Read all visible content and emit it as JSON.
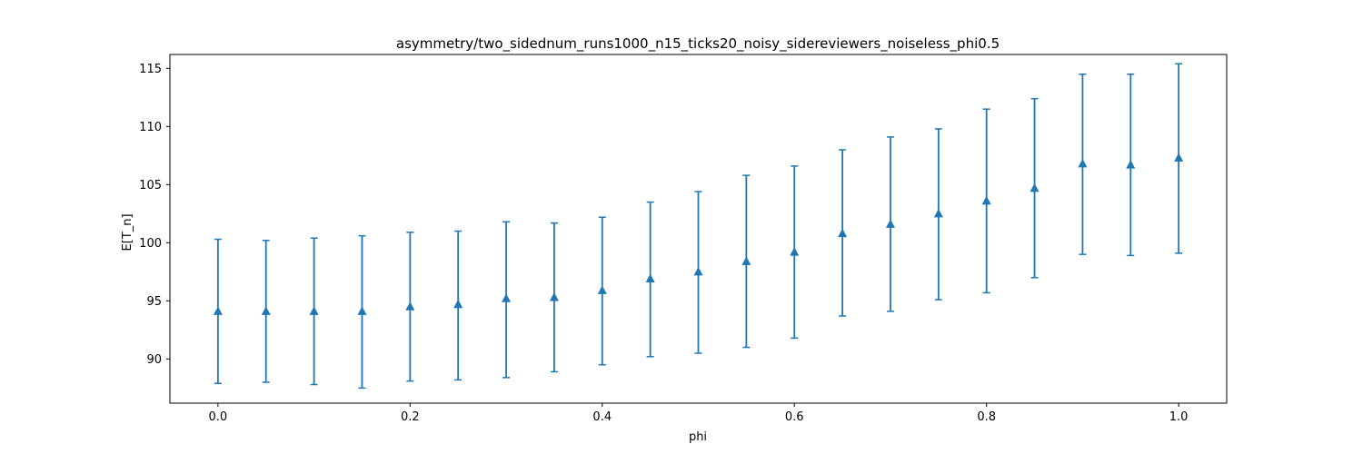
{
  "chart_data": {
    "type": "scatter",
    "title": "asymmetry/two_sidednum_runs1000_n15_ticks20_noisy_sidereviewers_noiseless_phi0.5",
    "xlabel": "phi",
    "ylabel": "E[T_n]",
    "xlim": [
      -0.05,
      1.05
    ],
    "ylim": [
      86.2,
      116.2
    ],
    "xticks": [
      0.0,
      0.2,
      0.4,
      0.6,
      0.8,
      1.0
    ],
    "xtick_labels": [
      "0.0",
      "0.2",
      "0.4",
      "0.6",
      "0.8",
      "1.0"
    ],
    "yticks": [
      90,
      95,
      100,
      105,
      110,
      115
    ],
    "ytick_labels": [
      "90",
      "95",
      "100",
      "105",
      "110",
      "115"
    ],
    "grid": false,
    "marker": "triangle-up",
    "error_bars": true,
    "color": "#1f77b4",
    "series": [
      {
        "x": [
          0.0,
          0.05,
          0.1,
          0.15,
          0.2,
          0.25,
          0.3,
          0.35,
          0.4,
          0.45,
          0.5,
          0.55,
          0.6,
          0.65,
          0.7,
          0.75,
          0.8,
          0.85,
          0.9,
          0.95,
          1.0
        ],
        "y": [
          94.1,
          94.1,
          94.1,
          94.1,
          94.5,
          94.7,
          95.2,
          95.3,
          95.9,
          96.9,
          97.5,
          98.4,
          99.2,
          100.8,
          101.6,
          102.5,
          103.6,
          104.7,
          106.8,
          106.7,
          107.3
        ],
        "y_lower": [
          87.9,
          88.0,
          87.8,
          87.5,
          88.1,
          88.2,
          88.4,
          88.9,
          89.5,
          90.2,
          90.5,
          91.0,
          91.8,
          93.7,
          94.1,
          95.1,
          95.7,
          97.0,
          99.0,
          98.9,
          99.1
        ],
        "y_upper": [
          100.3,
          100.2,
          100.4,
          100.6,
          100.9,
          101.0,
          101.8,
          101.7,
          102.2,
          103.5,
          104.4,
          105.8,
          106.6,
          108.0,
          109.1,
          109.8,
          111.5,
          112.4,
          114.5,
          114.5,
          115.4
        ]
      }
    ]
  }
}
